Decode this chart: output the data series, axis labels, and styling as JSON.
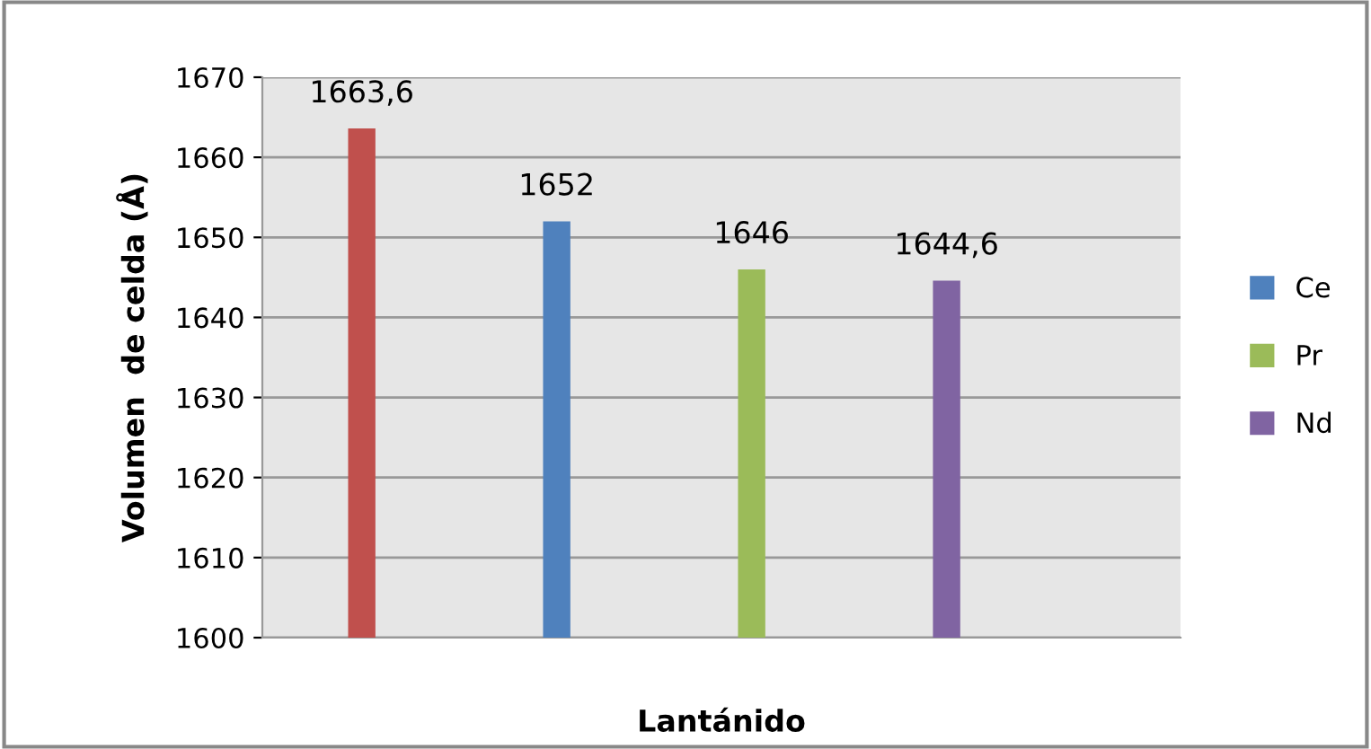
{
  "chart_data": {
    "type": "bar",
    "xlabel": "Lantánido",
    "ylabel": "Volumen  de celda (Å)",
    "categories": [
      null
    ],
    "series": [
      {
        "color": "#c0504d",
        "values": [
          1663.6
        ],
        "value_labels": [
          "1663,6"
        ]
      },
      {
        "name": "Ce",
        "color": "#4f81bd",
        "values": [
          1652
        ],
        "value_labels": [
          "1652"
        ]
      },
      {
        "name": "Pr",
        "color": "#9bbb59",
        "values": [
          1646
        ],
        "value_labels": [
          "1646"
        ]
      },
      {
        "name": "Nd",
        "color": "#8064a2",
        "values": [
          1644.6
        ],
        "value_labels": [
          "1644,6"
        ]
      }
    ],
    "ylim": [
      1600,
      1670
    ],
    "yticks": [
      1600,
      1610,
      1620,
      1630,
      1640,
      1650,
      1660,
      1670
    ],
    "grid": "y",
    "legend": "right"
  }
}
